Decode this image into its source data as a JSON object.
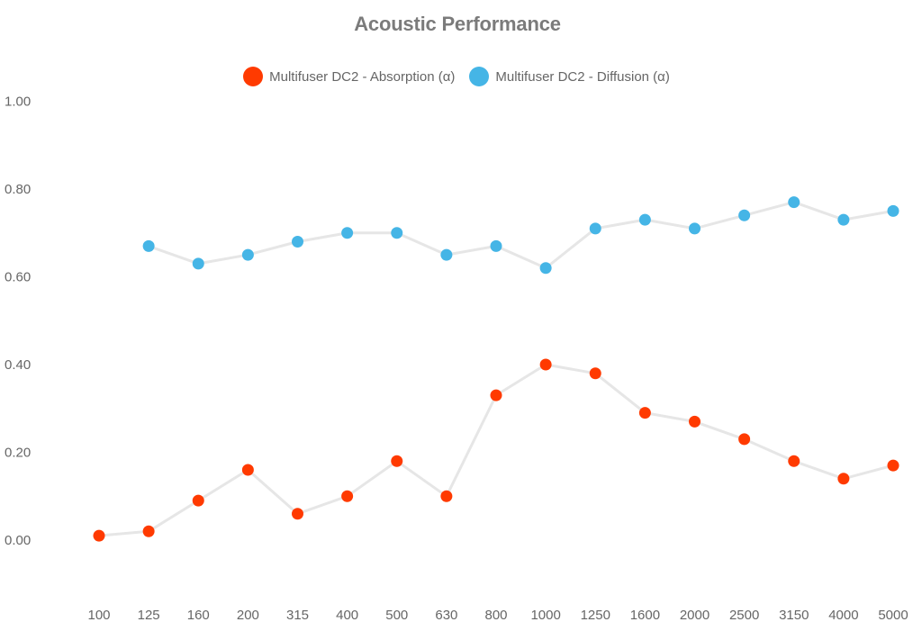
{
  "chart_data": {
    "type": "line",
    "title": "Acoustic Performance",
    "xlabel": "",
    "ylabel": "",
    "categories": [
      "100",
      "125",
      "160",
      "200",
      "315",
      "400",
      "500",
      "630",
      "800",
      "1000",
      "1250",
      "1600",
      "2000",
      "2500",
      "3150",
      "4000",
      "5000"
    ],
    "y_ticks": [
      "0.00",
      "0.20",
      "0.40",
      "0.60",
      "0.80",
      "1.00"
    ],
    "ylim": [
      -0.13,
      1.0
    ],
    "grid": false,
    "legend_position": "top-center",
    "series": [
      {
        "name": "Multifuser DC2 - Absorption (α)",
        "color": "#ff3a00",
        "values": [
          0.01,
          0.02,
          0.09,
          0.16,
          0.06,
          0.1,
          0.18,
          0.1,
          0.33,
          0.4,
          0.38,
          0.29,
          0.27,
          0.23,
          0.18,
          0.14,
          0.17
        ]
      },
      {
        "name": "Multifuser DC2 - Diffusion (α)",
        "color": "#45b5e6",
        "values": [
          null,
          0.67,
          0.63,
          0.65,
          0.68,
          0.7,
          0.7,
          0.65,
          0.67,
          0.62,
          0.71,
          0.73,
          0.71,
          0.74,
          0.77,
          0.73,
          0.75
        ]
      }
    ],
    "line_color": "#e6e6e6"
  }
}
